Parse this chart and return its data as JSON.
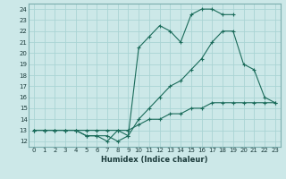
{
  "xlabel": "Humidex (Indice chaleur)",
  "ylabel": "",
  "bg_color": "#cce8e8",
  "grid_color": "#aad4d4",
  "line_color": "#1a6b5a",
  "xlim": [
    -0.5,
    23.5
  ],
  "ylim": [
    11.5,
    24.5
  ],
  "xticks": [
    0,
    1,
    2,
    3,
    4,
    5,
    6,
    7,
    8,
    9,
    10,
    11,
    12,
    13,
    14,
    15,
    16,
    17,
    18,
    19,
    20,
    21,
    22,
    23
  ],
  "yticks": [
    12,
    13,
    14,
    15,
    16,
    17,
    18,
    19,
    20,
    21,
    22,
    23,
    24
  ],
  "line1_x": [
    0,
    1,
    2,
    3,
    4,
    5,
    6,
    7,
    8,
    9,
    10,
    11,
    12,
    13,
    14,
    15,
    16,
    17,
    18,
    19,
    20,
    21,
    22,
    23
  ],
  "line1_y": [
    13,
    13,
    13,
    13,
    13,
    12.5,
    12.5,
    12,
    13,
    12.5,
    20.5,
    21.5,
    22.5,
    22,
    21,
    23.5,
    24,
    24,
    23.5,
    23.5,
    null,
    null,
    null,
    null
  ],
  "line2_x": [
    0,
    1,
    2,
    3,
    4,
    5,
    6,
    7,
    8,
    9,
    10,
    11,
    12,
    13,
    14,
    15,
    16,
    17,
    18,
    19,
    20,
    21,
    22,
    23
  ],
  "line2_y": [
    13,
    13,
    13,
    13,
    13,
    12.5,
    12.5,
    12.5,
    12,
    12.5,
    14,
    15,
    16,
    17,
    17.5,
    18.5,
    19.5,
    21,
    22,
    22,
    19,
    18.5,
    16,
    15.5
  ],
  "line3_x": [
    0,
    1,
    2,
    3,
    4,
    5,
    6,
    7,
    8,
    9,
    10,
    11,
    12,
    13,
    14,
    15,
    16,
    17,
    18,
    19,
    20,
    21,
    22,
    23
  ],
  "line3_y": [
    13,
    13,
    13,
    13,
    13,
    13,
    13,
    13,
    13,
    13,
    13.5,
    14,
    14,
    14.5,
    14.5,
    15,
    15,
    15.5,
    15.5,
    15.5,
    15.5,
    15.5,
    15.5,
    15.5
  ]
}
